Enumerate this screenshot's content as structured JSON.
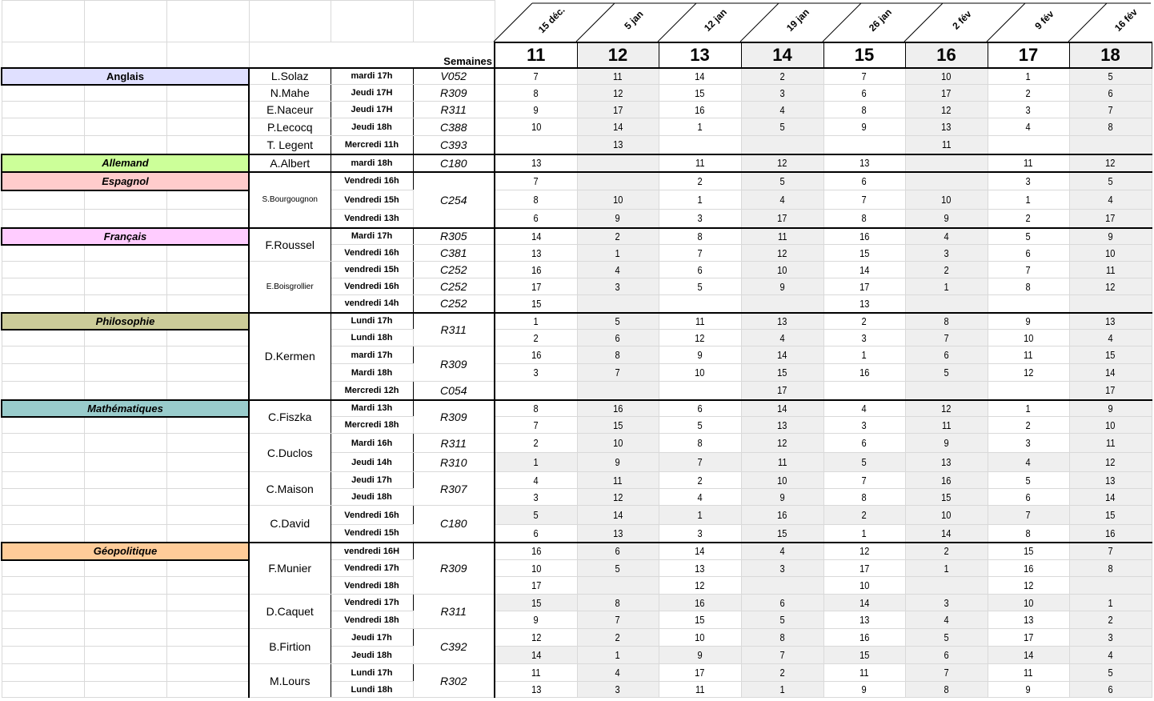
{
  "header_label": "Semaines",
  "weeks": [
    {
      "num": "11",
      "date": "15 déc."
    },
    {
      "num": "12",
      "date": "5 jan"
    },
    {
      "num": "13",
      "date": "12 jan"
    },
    {
      "num": "14",
      "date": "19 jan"
    },
    {
      "num": "15",
      "date": "26 jan"
    },
    {
      "num": "16",
      "date": "2 fév"
    },
    {
      "num": "17",
      "date": "9 fév"
    },
    {
      "num": "18",
      "date": "16 fév"
    }
  ],
  "colors": {
    "grey_cell": "#efefef"
  },
  "sections": [
    {
      "name": "Anglais",
      "color": "#e0e0ff",
      "italic": false,
      "rows": [
        {
          "teacher": "L.Solaz",
          "tspan": 1,
          "time": "mardi 17h",
          "room": "V052",
          "rspan": 1,
          "values": [
            "7",
            "11",
            "14",
            "2",
            "7",
            "10",
            "1",
            "5"
          ]
        },
        {
          "teacher": "N.Mahe",
          "tspan": 1,
          "time": "Jeudi 17H",
          "room": "R309",
          "rspan": 1,
          "values": [
            "8",
            "12",
            "15",
            "3",
            "6",
            "17",
            "2",
            "6"
          ]
        },
        {
          "teacher": "E.Naceur",
          "tspan": 1,
          "time": "Jeudi 17H",
          "room": "R311",
          "rspan": 1,
          "values": [
            "9",
            "17",
            "16",
            "4",
            "8",
            "12",
            "3",
            "7"
          ]
        },
        {
          "teacher": "P.Lecocq",
          "tspan": 1,
          "time": "Jeudi 18h",
          "room": "C388",
          "rspan": 1,
          "values": [
            "10",
            "14",
            "1",
            "5",
            "9",
            "13",
            "4",
            "8"
          ]
        },
        {
          "teacher": "T. Legent",
          "tspan": 1,
          "time": "Mercredi 11h",
          "room": "C393",
          "rspan": 1,
          "values": [
            "",
            "13",
            "",
            "",
            "",
            "11",
            "",
            ""
          ]
        }
      ]
    },
    {
      "name": "Allemand",
      "color": "#ccff99",
      "italic": true,
      "rows": [
        {
          "teacher": "A.Albert",
          "tspan": 1,
          "time": "mardi 18h",
          "room": "C180",
          "rspan": 1,
          "values": [
            "13",
            "",
            "11",
            "12",
            "13",
            "",
            "11",
            "12"
          ]
        }
      ]
    },
    {
      "name": "Espagnol",
      "color": "#ffcccc",
      "italic": true,
      "rows": [
        {
          "teacher": "S.Bourgougnon",
          "tspan": 3,
          "time": "Vendredi 16h",
          "room": "C254",
          "rspan": 3,
          "values": [
            "7",
            "",
            "2",
            "5",
            "6",
            "",
            "3",
            "5"
          ]
        },
        {
          "time": "Vendredi 15h",
          "values": [
            "8",
            "10",
            "1",
            "4",
            "7",
            "10",
            "1",
            "4"
          ]
        },
        {
          "time": "Vendredi 13h",
          "values": [
            "6",
            "9",
            "3",
            "17",
            "8",
            "9",
            "2",
            "17"
          ]
        }
      ]
    },
    {
      "name": "Français",
      "color": "#ffccff",
      "italic": true,
      "rows": [
        {
          "teacher": "F.Roussel",
          "tspan": 2,
          "time": "Mardi 17h",
          "room": "R305",
          "rspan": 1,
          "values": [
            "14",
            "2",
            "8",
            "11",
            "16",
            "4",
            "5",
            "9"
          ]
        },
        {
          "time": "Vendredi 16h",
          "room": "C381",
          "rspan": 1,
          "values": [
            "13",
            "1",
            "7",
            "12",
            "15",
            "3",
            "6",
            "10"
          ]
        },
        {
          "teacher": "E.Boisgrollier",
          "tspan": 3,
          "time": "vendredi 15h",
          "room": "C252",
          "rspan": 1,
          "values": [
            "16",
            "4",
            "6",
            "10",
            "14",
            "2",
            "7",
            "11"
          ]
        },
        {
          "time": "Vendredi 16h",
          "room": "C252",
          "rspan": 1,
          "values": [
            "17",
            "3",
            "5",
            "9",
            "17",
            "1",
            "8",
            "12"
          ]
        },
        {
          "time": "vendredi 14h",
          "room": "C252",
          "rspan": 1,
          "values": [
            "15",
            "",
            "",
            "",
            "13",
            "",
            "",
            ""
          ]
        }
      ]
    },
    {
      "name": "Philosophie",
      "color": "#cccc99",
      "italic": true,
      "rows": [
        {
          "teacher": "D.Kermen",
          "tspan": 5,
          "time": "Lundi 17h",
          "room": "R311",
          "rspan": 2,
          "values": [
            "1",
            "5",
            "11",
            "13",
            "2",
            "8",
            "9",
            "13"
          ]
        },
        {
          "time": "Lundi 18h",
          "values": [
            "2",
            "6",
            "12",
            "4",
            "3",
            "7",
            "10",
            "4"
          ]
        },
        {
          "time": "mardi 17h",
          "room": "R309",
          "rspan": 2,
          "values": [
            "16",
            "8",
            "9",
            "14",
            "1",
            "6",
            "11",
            "15"
          ]
        },
        {
          "time": "Mardi 18h",
          "values": [
            "3",
            "7",
            "10",
            "15",
            "16",
            "5",
            "12",
            "14"
          ]
        },
        {
          "time": "Mercredi 12h",
          "room": "C054",
          "rspan": 1,
          "values": [
            "",
            "",
            "",
            "17",
            "",
            "",
            "",
            "17"
          ]
        }
      ]
    },
    {
      "name": "Mathématiques",
      "color": "#99cccc",
      "italic": true,
      "rows": [
        {
          "teacher": "C.Fiszka",
          "tspan": 2,
          "time": "Mardi 13h",
          "room": "R309",
          "rspan": 2,
          "values": [
            "8",
            "16",
            "6",
            "14",
            "4",
            "12",
            "1",
            "9"
          ]
        },
        {
          "time": "Mercredi 18h",
          "values": [
            "7",
            "15",
            "5",
            "13",
            "3",
            "11",
            "2",
            "10"
          ]
        },
        {
          "teacher": "C.Duclos",
          "tspan": 2,
          "time": "Mardi 16h",
          "room": "R311",
          "rspan": 1,
          "values": [
            "2",
            "10",
            "8",
            "12",
            "6",
            "9",
            "3",
            "11"
          ]
        },
        {
          "time": "Jeudi 14h",
          "room": "R310",
          "rspan": 1,
          "grey": true,
          "values": [
            "1",
            "9",
            "7",
            "11",
            "5",
            "13",
            "4",
            "12"
          ]
        },
        {
          "teacher": "C.Maison",
          "tspan": 2,
          "time": "Jeudi 17h",
          "room": "R307",
          "rspan": 2,
          "values": [
            "4",
            "11",
            "2",
            "10",
            "7",
            "16",
            "5",
            "13"
          ]
        },
        {
          "time": "Jeudi 18h",
          "values": [
            "3",
            "12",
            "4",
            "9",
            "8",
            "15",
            "6",
            "14"
          ]
        },
        {
          "teacher": "C.David",
          "tspan": 2,
          "time": "Vendredi 16h",
          "room": "C180",
          "rspan": 2,
          "grey": true,
          "values": [
            "5",
            "14",
            "1",
            "16",
            "2",
            "10",
            "7",
            "15"
          ]
        },
        {
          "time": "Vendredi 15h",
          "values": [
            "6",
            "13",
            "3",
            "15",
            "1",
            "14",
            "8",
            "16"
          ]
        }
      ]
    },
    {
      "name": "Géopolitique",
      "color": "#ffcc99",
      "italic": true,
      "rows": [
        {
          "teacher": "F.Munier",
          "tspan": 3,
          "time": "vendredi 16H",
          "room": "R309",
          "rspan": 3,
          "values": [
            "16",
            "6",
            "14",
            "4",
            "12",
            "2",
            "15",
            "7"
          ]
        },
        {
          "time": "Vendredi 17h",
          "values": [
            "10",
            "5",
            "13",
            "3",
            "17",
            "1",
            "16",
            "8"
          ]
        },
        {
          "time": "Vendredi 18h",
          "values": [
            "17",
            "",
            "12",
            "",
            "10",
            "",
            "12",
            ""
          ]
        },
        {
          "teacher": "D.Caquet",
          "tspan": 2,
          "time": "Vendredi 17h",
          "room": "R311",
          "rspan": 2,
          "grey": true,
          "values": [
            "15",
            "8",
            "16",
            "6",
            "14",
            "3",
            "10",
            "1"
          ]
        },
        {
          "time": "Vendredi 18h",
          "values": [
            "9",
            "7",
            "15",
            "5",
            "13",
            "4",
            "13",
            "2"
          ]
        },
        {
          "teacher": "B.Firtion",
          "tspan": 2,
          "time": "Jeudi 17h",
          "room": "C392",
          "rspan": 2,
          "values": [
            "12",
            "2",
            "10",
            "8",
            "16",
            "5",
            "17",
            "3"
          ]
        },
        {
          "time": "Jeudi 18h",
          "grey": true,
          "values": [
            "14",
            "1",
            "9",
            "7",
            "15",
            "6",
            "14",
            "4"
          ]
        },
        {
          "teacher": "M.Lours",
          "tspan": 2,
          "time": "Lundi 17h",
          "room": "R302",
          "rspan": 2,
          "values": [
            "11",
            "4",
            "17",
            "2",
            "11",
            "7",
            "11",
            "5"
          ]
        },
        {
          "time": "Lundi 18h",
          "values": [
            "13",
            "3",
            "11",
            "1",
            "9",
            "8",
            "9",
            "6"
          ]
        }
      ]
    }
  ]
}
